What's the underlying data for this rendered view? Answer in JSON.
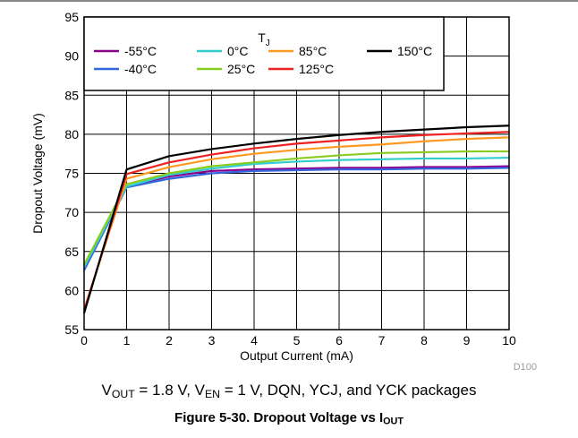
{
  "chart_data": {
    "type": "line",
    "xlabel": "Output Current (mA)",
    "ylabel": "Dropout Voltage (mV)",
    "xlim": [
      0,
      10
    ],
    "ylim": [
      55,
      95
    ],
    "xticks": [
      "0",
      "1",
      "2",
      "3",
      "4",
      "5",
      "6",
      "7",
      "8",
      "9",
      "10"
    ],
    "yticks": [
      "55",
      "60",
      "65",
      "70",
      "75",
      "80",
      "85",
      "90",
      "95"
    ],
    "grid": true,
    "legend": {
      "title_main": "T",
      "title_sub": "J",
      "placement": "top-left"
    },
    "x": [
      0,
      1,
      2,
      3,
      4,
      5,
      6,
      7,
      8,
      9,
      10
    ],
    "series": [
      {
        "name": "-55°C",
        "color": "#8b008b",
        "values": [
          62.8,
          73.3,
          74.6,
          75.3,
          75.5,
          75.6,
          75.7,
          75.7,
          75.8,
          75.8,
          75.9
        ]
      },
      {
        "name": "-40°C",
        "color": "#3366dd",
        "values": [
          62.6,
          73.2,
          74.3,
          75.0,
          75.3,
          75.4,
          75.5,
          75.5,
          75.6,
          75.6,
          75.7
        ]
      },
      {
        "name": "0°C",
        "color": "#33cccc",
        "values": [
          63.0,
          73.3,
          74.8,
          75.6,
          76.2,
          76.5,
          76.7,
          76.8,
          76.9,
          76.9,
          77.0
        ]
      },
      {
        "name": "25°C",
        "color": "#88cc22",
        "values": [
          63.3,
          73.6,
          75.0,
          75.9,
          76.4,
          76.9,
          77.3,
          77.6,
          77.7,
          77.8,
          77.8
        ]
      },
      {
        "name": "85°C",
        "color": "#ff9922",
        "values": [
          57.6,
          74.3,
          75.8,
          76.8,
          77.5,
          78.0,
          78.4,
          78.7,
          79.1,
          79.4,
          79.6
        ]
      },
      {
        "name": "125°C",
        "color": "#ee2222",
        "values": [
          57.4,
          74.9,
          76.4,
          77.4,
          78.2,
          78.8,
          79.2,
          79.6,
          79.9,
          80.1,
          80.3
        ]
      },
      {
        "name": "150°C",
        "color": "#000000",
        "values": [
          57.1,
          75.5,
          77.2,
          78.1,
          78.8,
          79.4,
          79.9,
          80.3,
          80.6,
          80.9,
          81.1
        ]
      }
    ],
    "figure_code": "D100"
  },
  "caption": {
    "v": "V",
    "out_sub": "OUT",
    "part1": " = 1.8 V, V",
    "en_sub": "EN",
    "part2": " = 1 V, DQN, YCJ, and YCK packages"
  },
  "figure_title": {
    "text": "Figure 5-30. Dropout Voltage vs I",
    "sub": "OUT"
  }
}
